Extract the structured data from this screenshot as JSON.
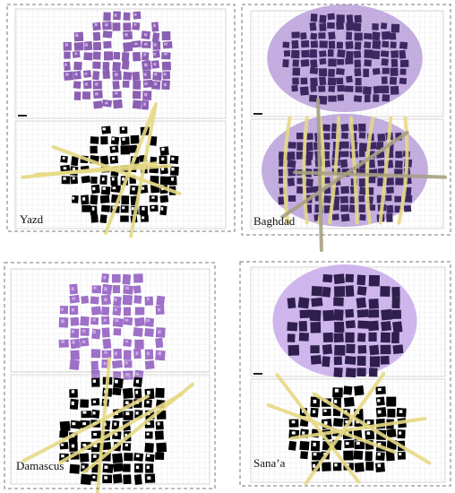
{
  "panels": [
    {
      "label": "Yazd"
    },
    {
      "label": "Baghdad"
    },
    {
      "label": "Damascus"
    },
    {
      "label": "Sana’a"
    }
  ]
}
